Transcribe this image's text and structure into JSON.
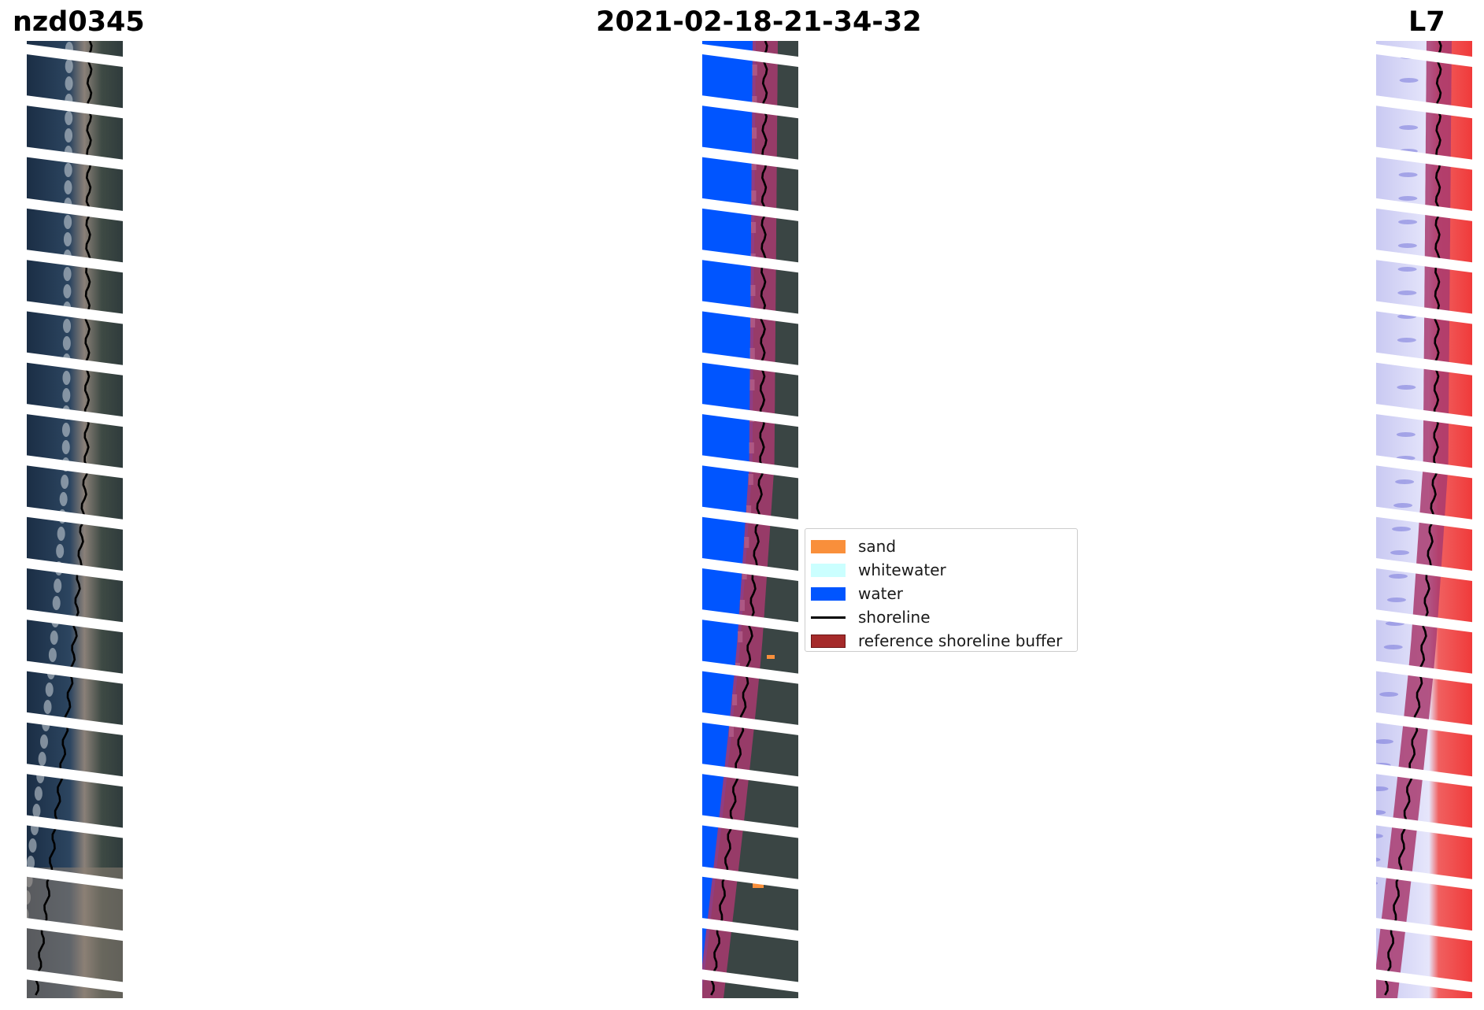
{
  "titles": {
    "site": "nzd0345",
    "date": "2021-02-18-21-34-32",
    "satellite": "L7"
  },
  "panels": [
    {
      "name": "rgb-image-panel"
    },
    {
      "name": "classified-image-panel"
    },
    {
      "name": "mndwi-image-panel"
    }
  ],
  "legend": {
    "items": [
      {
        "label": "sand",
        "type": "patch",
        "color": "#f98f3b",
        "edge": "#f98f3b"
      },
      {
        "label": "whitewater",
        "type": "patch",
        "color": "#cbffff",
        "edge": "#cbffff"
      },
      {
        "label": "water",
        "type": "patch",
        "color": "#0055ff",
        "edge": "#0055ff"
      },
      {
        "label": "shoreline",
        "type": "line",
        "color": "#000000"
      },
      {
        "label": "reference shoreline buffer",
        "type": "patch",
        "color": "#a52a2a",
        "edge": "#6b1414"
      }
    ]
  },
  "colors": {
    "water": "#0055ff",
    "whitewater": "#cbffff",
    "sand": "#f98f3b",
    "buffer": "#a8396e",
    "shoreline": "#000000"
  }
}
